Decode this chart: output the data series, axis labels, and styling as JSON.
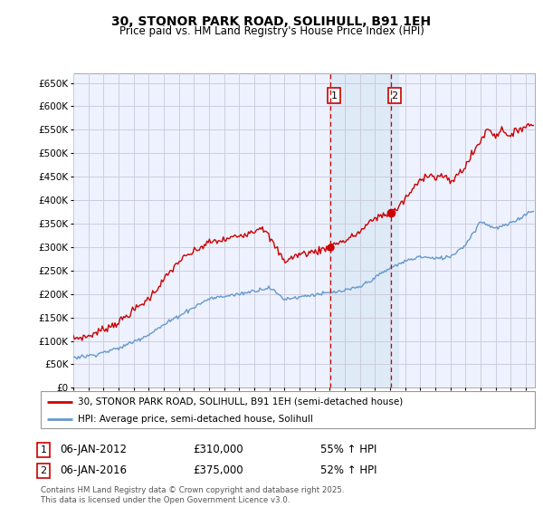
{
  "title": "30, STONOR PARK ROAD, SOLIHULL, B91 1EH",
  "subtitle": "Price paid vs. HM Land Registry's House Price Index (HPI)",
  "legend_line1": "30, STONOR PARK ROAD, SOLIHULL, B91 1EH (semi-detached house)",
  "legend_line2": "HPI: Average price, semi-detached house, Solihull",
  "annotation1_date": "06-JAN-2012",
  "annotation1_price": "£310,000",
  "annotation1_hpi": "55% ↑ HPI",
  "annotation2_date": "06-JAN-2016",
  "annotation2_price": "£375,000",
  "annotation2_hpi": "52% ↑ HPI",
  "footnote": "Contains HM Land Registry data © Crown copyright and database right 2025.\nThis data is licensed under the Open Government Licence v3.0.",
  "red_line_color": "#cc0000",
  "blue_line_color": "#6699cc",
  "bg_plot_color": "#eef2ff",
  "grid_color": "#ccccdd",
  "ylim": [
    0,
    670000
  ],
  "ytick_step": 50000,
  "purchase1_year": 2012.04,
  "purchase2_year": 2016.04
}
